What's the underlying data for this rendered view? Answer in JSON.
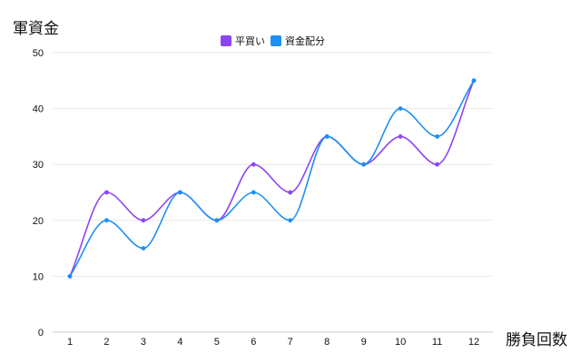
{
  "chart_data": {
    "type": "line",
    "ylabel": "軍資金",
    "xlabel": "勝負回数",
    "categories": [
      "1",
      "2",
      "3",
      "4",
      "5",
      "6",
      "7",
      "8",
      "9",
      "10",
      "11",
      "12"
    ],
    "ylim": [
      0,
      50
    ],
    "yticks": [
      0,
      10,
      20,
      30,
      40,
      50
    ],
    "grid": true,
    "legend_position": "top-center",
    "series": [
      {
        "name": "平買い",
        "color": "#8c44f7",
        "values": [
          10,
          25,
          20,
          25,
          20,
          30,
          25,
          35,
          30,
          35,
          30,
          45
        ]
      },
      {
        "name": "資金配分",
        "color": "#1e8ff2",
        "values": [
          10,
          20,
          15,
          25,
          20,
          25,
          20,
          35,
          30,
          40,
          35,
          45
        ]
      }
    ]
  }
}
